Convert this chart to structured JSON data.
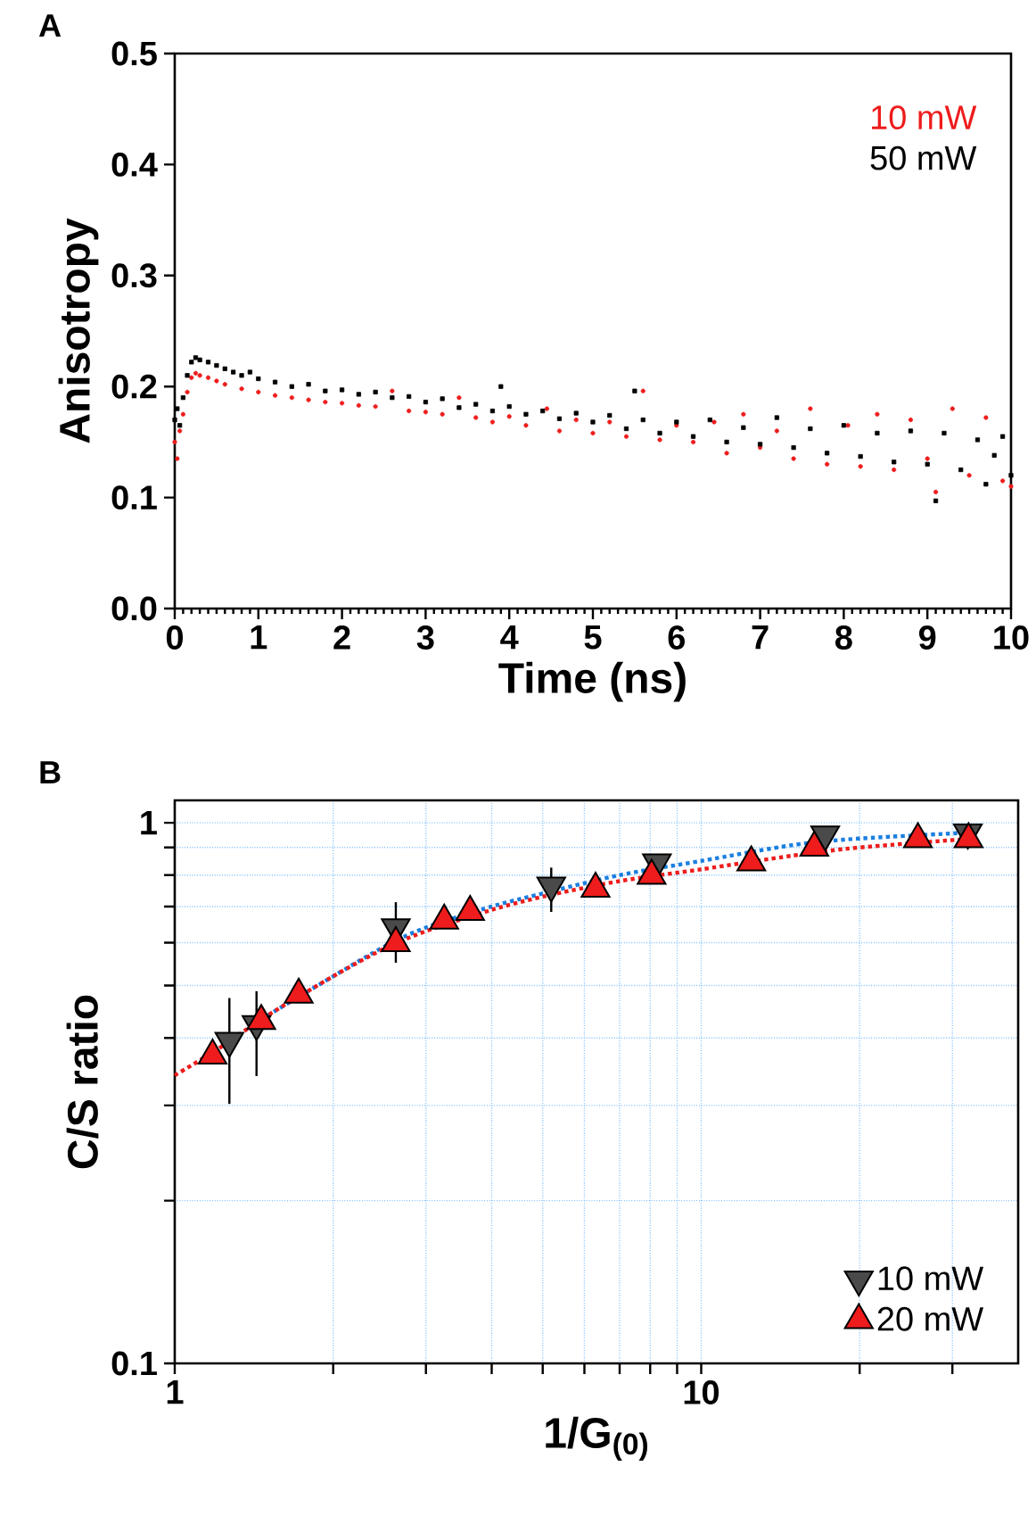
{
  "chart_data": [
    {
      "type": "scatter",
      "title": "A",
      "xlabel": "Time (ns)",
      "ylabel": "Anisotropy",
      "xlim": [
        0,
        10
      ],
      "ylim": [
        0,
        0.5
      ],
      "xticks": [
        0,
        1,
        2,
        3,
        4,
        5,
        6,
        7,
        8,
        9,
        10
      ],
      "yticks": [
        {
          "value": 0,
          "label": "0.0"
        },
        0.1,
        0.2,
        0.3,
        0.4,
        0.5
      ],
      "legend": "top right",
      "series": [
        {
          "name": "10 mW",
          "color": "#ee1c1c",
          "marker": "circle",
          "x": [
            0,
            0.03,
            0.06,
            0.1,
            0.15,
            0.2,
            0.25,
            0.3,
            0.4,
            0.5,
            0.6,
            0.8,
            1.0,
            1.2,
            1.4,
            1.6,
            1.8,
            2.0,
            2.2,
            2.4,
            2.6,
            2.8,
            3.0,
            3.2,
            3.4,
            3.6,
            3.8,
            4.0,
            4.2,
            4.45,
            4.6,
            4.8,
            5.0,
            5.2,
            5.4,
            5.6,
            5.8,
            6.0,
            6.2,
            6.45,
            6.6,
            6.8,
            7.0,
            7.2,
            7.4,
            7.6,
            7.8,
            8.05,
            8.2,
            8.4,
            8.6,
            8.8,
            9.0,
            9.1,
            9.3,
            9.5,
            9.7,
            9.9,
            10
          ],
          "values": [
            0.15,
            0.135,
            0.16,
            0.175,
            0.195,
            0.208,
            0.212,
            0.21,
            0.208,
            0.205,
            0.202,
            0.198,
            0.195,
            0.192,
            0.19,
            0.188,
            0.186,
            0.185,
            0.183,
            0.182,
            0.196,
            0.178,
            0.177,
            0.175,
            0.19,
            0.172,
            0.168,
            0.173,
            0.165,
            0.18,
            0.16,
            0.17,
            0.158,
            0.168,
            0.155,
            0.196,
            0.152,
            0.165,
            0.15,
            0.168,
            0.14,
            0.175,
            0.145,
            0.16,
            0.135,
            0.18,
            0.13,
            0.165,
            0.128,
            0.175,
            0.125,
            0.17,
            0.135,
            0.105,
            0.18,
            0.12,
            0.172,
            0.115,
            0.11
          ]
        },
        {
          "name": "50 mW",
          "color": "#000000",
          "marker": "square",
          "x": [
            0,
            0.03,
            0.06,
            0.1,
            0.15,
            0.2,
            0.25,
            0.3,
            0.4,
            0.5,
            0.6,
            0.7,
            0.8,
            0.9,
            1.0,
            1.2,
            1.4,
            1.6,
            1.8,
            2.0,
            2.2,
            2.4,
            2.6,
            2.8,
            3.0,
            3.2,
            3.4,
            3.6,
            3.8,
            3.9,
            4.0,
            4.2,
            4.4,
            4.6,
            4.8,
            5.0,
            5.2,
            5.4,
            5.5,
            5.6,
            5.8,
            6.0,
            6.2,
            6.4,
            6.6,
            6.8,
            7.0,
            7.2,
            7.4,
            7.6,
            7.8,
            8.0,
            8.2,
            8.4,
            8.6,
            8.8,
            9.0,
            9.1,
            9.2,
            9.4,
            9.6,
            9.7,
            9.8,
            9.9,
            10
          ],
          "values": [
            0.17,
            0.18,
            0.165,
            0.19,
            0.21,
            0.222,
            0.226,
            0.224,
            0.222,
            0.219,
            0.216,
            0.213,
            0.21,
            0.213,
            0.207,
            0.204,
            0.2,
            0.202,
            0.196,
            0.197,
            0.193,
            0.195,
            0.19,
            0.191,
            0.186,
            0.189,
            0.181,
            0.184,
            0.178,
            0.2,
            0.182,
            0.175,
            0.178,
            0.171,
            0.176,
            0.168,
            0.174,
            0.162,
            0.196,
            0.17,
            0.158,
            0.168,
            0.155,
            0.17,
            0.15,
            0.163,
            0.148,
            0.172,
            0.145,
            0.162,
            0.14,
            0.165,
            0.137,
            0.158,
            0.132,
            0.16,
            0.13,
            0.097,
            0.158,
            0.125,
            0.152,
            0.112,
            0.138,
            0.155,
            0.12
          ]
        }
      ]
    },
    {
      "type": "scatter",
      "title": "B",
      "xlabel": "1/G$_{(0)}$",
      "ylabel": "C/S ratio",
      "log": "xy",
      "grid": true,
      "xlim": [
        1,
        40
      ],
      "ylim": [
        0.1,
        1.1
      ],
      "xticks": [
        1,
        {
          "value": 2,
          "label": null
        },
        {
          "value": 3,
          "label": null
        },
        {
          "value": 4,
          "label": null
        },
        {
          "value": 5,
          "label": null
        },
        {
          "value": 6,
          "label": null
        },
        {
          "value": 7,
          "label": null
        },
        {
          "value": 8,
          "label": null
        },
        {
          "value": 9,
          "label": null
        },
        10,
        {
          "value": 20,
          "label": null
        },
        {
          "value": 30,
          "label": null
        }
      ],
      "yticks": [
        0.1,
        {
          "value": 0.2,
          "label": null
        },
        {
          "value": 0.3,
          "label": null
        },
        {
          "value": 0.4,
          "label": null
        },
        {
          "value": 0.5,
          "label": null
        },
        {
          "value": 0.6,
          "label": null
        },
        {
          "value": 0.7,
          "label": null
        },
        {
          "value": 0.8,
          "label": null
        },
        {
          "value": 0.9,
          "label": null
        },
        1
      ],
      "legend": "bottom right",
      "series": [
        {
          "type": "line",
          "color": "#1a7fe0",
          "line_style": "dotted",
          "marker": "none",
          "x": [
            1.5,
            2,
            2.5,
            3,
            4,
            5,
            7,
            10,
            15,
            20,
            33
          ],
          "values": [
            0.44,
            0.52,
            0.59,
            0.64,
            0.7,
            0.74,
            0.8,
            0.85,
            0.91,
            0.935,
            0.96
          ]
        },
        {
          "type": "line",
          "color": "#ee1c1c",
          "line_style": "dotted",
          "marker": "none",
          "x": [
            1,
            1.2,
            1.5,
            2,
            2.5,
            3,
            4,
            5,
            7,
            10,
            15,
            20,
            33
          ],
          "values": [
            0.341,
            0.38,
            0.44,
            0.52,
            0.585,
            0.63,
            0.69,
            0.73,
            0.78,
            0.82,
            0.87,
            0.9,
            0.935
          ]
        },
        {
          "name": "10 mW",
          "color": "#4a4a4a",
          "marker": "triangle down",
          "x": [
            1.27,
            1.43,
            2.63,
            5.19,
            8.24,
            17.2,
            32.1
          ],
          "values": [
            0.395,
            0.424,
            0.641,
            0.765,
            0.845,
            0.951,
            0.959
          ],
          "errors": [
            [
              0.302,
              0.474
            ],
            [
              0.34,
              0.488
            ],
            [
              0.551,
              0.713
            ],
            [
              0.684,
              0.826
            ],
            null,
            null,
            null
          ]
        },
        {
          "name": "20 mW",
          "color": "#ee1c1c",
          "marker": "triangle",
          "x": [
            1.18,
            1.46,
            1.72,
            2.63,
            3.25,
            3.64,
            6.3,
            8.05,
            12.45,
            16.4,
            25.8,
            32.2
          ],
          "values": [
            0.371,
            0.43,
            0.481,
            0.599,
            0.659,
            0.684,
            0.755,
            0.798,
            0.845,
            0.899,
            0.932,
            0.932
          ]
        }
      ]
    }
  ]
}
